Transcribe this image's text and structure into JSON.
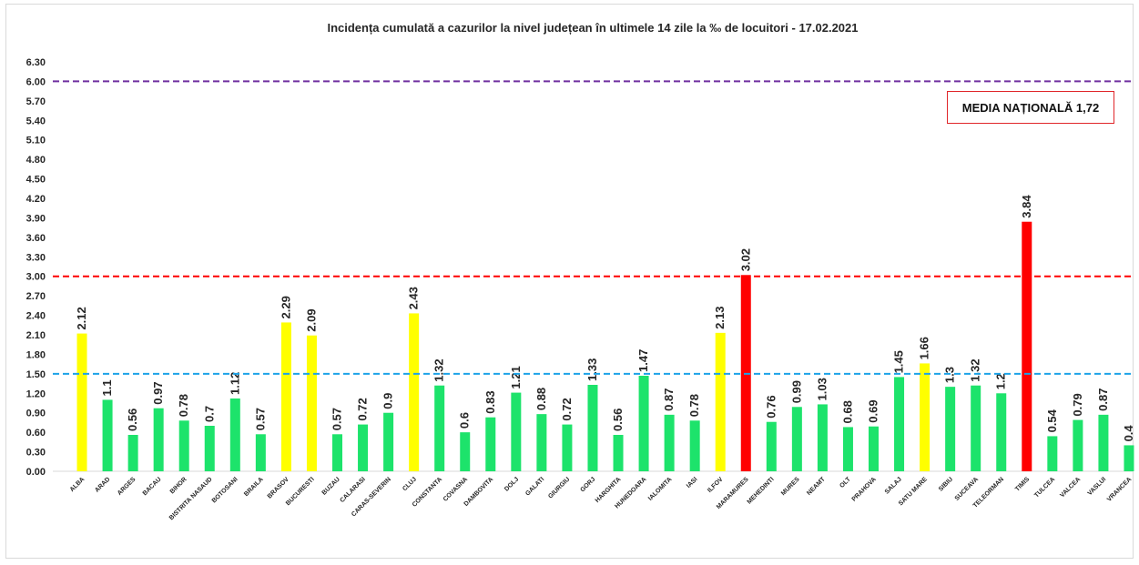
{
  "chart_data": {
    "type": "bar",
    "title": "Incidența cumulată a cazurilor la nivel județean în ultimele 14 zile la ‰ de locuitori - 17.02.2021",
    "xlabel": "",
    "ylabel": "",
    "ylim": [
      0,
      6.3
    ],
    "yticks": [
      "0.00",
      "0.30",
      "0.60",
      "0.90",
      "1.20",
      "1.50",
      "1.80",
      "2.10",
      "2.40",
      "2.70",
      "3.00",
      "3.30",
      "3.60",
      "3.90",
      "4.20",
      "4.50",
      "4.80",
      "5.10",
      "5.40",
      "5.70",
      "6.00",
      "6.30"
    ],
    "grid": false,
    "categories": [
      "ALBA",
      "ARAD",
      "ARGES",
      "BACAU",
      "BIHOR",
      "BISTRITA NASAUD",
      "BOTOSANI",
      "BRAILA",
      "BRASOV",
      "BUCURESTI",
      "BUZAU",
      "CALARASI",
      "CARAS-SEVERIN",
      "CLUJ",
      "CONSTANTA",
      "COVASNA",
      "DAMBOVITA",
      "DOLJ",
      "GALATI",
      "GIURGIU",
      "GORJ",
      "HARGHITA",
      "HUNEDOARA",
      "IALOMITA",
      "IASI",
      "ILFOV",
      "MARAMURES",
      "MEHEDINTI",
      "MURES",
      "NEAMT",
      "OLT",
      "PRAHOVA",
      "SALAJ",
      "SATU MARE",
      "SIBIU",
      "SUCEAVA",
      "TELEORMAN",
      "TIMIS",
      "TULCEA",
      "VALCEA",
      "VASLUI",
      "VRANCEA"
    ],
    "values": [
      2.12,
      1.1,
      0.56,
      0.97,
      0.78,
      0.7,
      1.12,
      0.57,
      2.29,
      2.09,
      0.57,
      0.72,
      0.9,
      2.43,
      1.32,
      0.6,
      0.83,
      1.21,
      0.88,
      0.72,
      1.33,
      0.56,
      1.47,
      0.87,
      0.78,
      2.13,
      3.02,
      0.76,
      0.99,
      1.03,
      0.68,
      0.69,
      1.45,
      1.66,
      1.3,
      1.32,
      1.2,
      3.84,
      0.54,
      0.79,
      0.87,
      0.4
    ],
    "value_labels": [
      "2.12",
      "1.1",
      "0.56",
      "0.97",
      "0.78",
      "0.7",
      "1.12",
      "0.57",
      "2.29",
      "2.09",
      "0.57",
      "0.72",
      "0.9",
      "2.43",
      "1.32",
      "0.6",
      "0.83",
      "1.21",
      "0.88",
      "0.72",
      "1.33",
      "0.56",
      "1.47",
      "0.87",
      "0.78",
      "2.13",
      "3.02",
      "0.76",
      "0.99",
      "1.03",
      "0.68",
      "0.69",
      "1.45",
      "1.66",
      "1.3",
      "1.32",
      "1.2",
      "3.84",
      "0.54",
      "0.79",
      "0.87",
      "0.4"
    ],
    "colors": {
      "green": "#1de36b",
      "yellow": "#ffff00",
      "red": "#ff0000"
    },
    "thresholds": [
      {
        "value": 1.5,
        "color": "#1ca3e8"
      },
      {
        "value": 3.0,
        "color": "#ff0000"
      },
      {
        "value": 6.0,
        "color": "#7030a0"
      }
    ],
    "color_rule": {
      "green_below": 1.5,
      "yellow_below": 3.0
    }
  },
  "annotation": {
    "media_nationala": "MEDIA NAȚIONALĂ  1,72"
  }
}
